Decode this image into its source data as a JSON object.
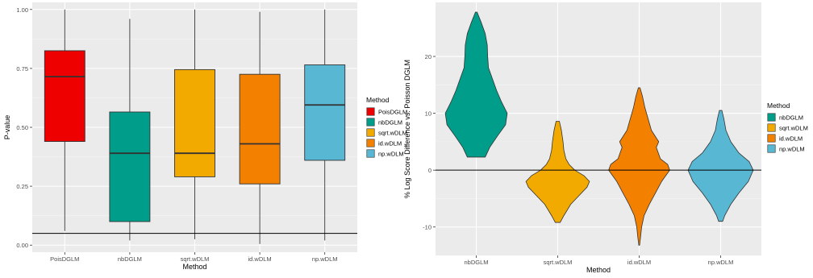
{
  "chart_data": [
    {
      "type": "box",
      "xlabel": "Method",
      "ylabel": "P-value",
      "ylim": [
        -0.03,
        1.03
      ],
      "yticks": [
        "0.00",
        "0.25",
        "0.50",
        "0.75",
        "1.00"
      ],
      "yticks_values": [
        0,
        0.25,
        0.5,
        0.75,
        1.0
      ],
      "hline": 0.05,
      "grid": true,
      "legend_title": "Method",
      "legend_position": "right",
      "categories": [
        "PoisDGLM",
        "nbDGLM",
        "sqrt.wDLM",
        "id.wDLM",
        "np.wDLM"
      ],
      "colors": [
        "#ee0000",
        "#009e8a",
        "#f2aa00",
        "#f48000",
        "#58b7d3"
      ],
      "boxes": [
        {
          "min": 0.06,
          "q1": 0.44,
          "median": 0.715,
          "q3": 0.825,
          "max": 1.0
        },
        {
          "min": 0.02,
          "q1": 0.1,
          "median": 0.39,
          "q3": 0.565,
          "max": 0.96
        },
        {
          "min": 0.025,
          "q1": 0.29,
          "median": 0.39,
          "q3": 0.745,
          "max": 1.0
        },
        {
          "min": 0.005,
          "q1": 0.26,
          "median": 0.43,
          "q3": 0.725,
          "max": 0.99
        },
        {
          "min": 0.02,
          "q1": 0.36,
          "median": 0.595,
          "q3": 0.765,
          "max": 1.0
        }
      ]
    },
    {
      "type": "violin",
      "xlabel": "Method",
      "ylabel": "% Log Score Difference vs. Poisson DGLM",
      "ylim": [
        -15,
        29.5
      ],
      "yticks": [
        "-10",
        "0",
        "10",
        "20"
      ],
      "yticks_values": [
        -10,
        0,
        10,
        20
      ],
      "hline": 0,
      "grid": true,
      "legend_title": "Method",
      "legend_position": "right",
      "categories": [
        "nbDGLM",
        "sqrt.wDLM",
        "id.wDLM",
        "np.wDLM"
      ],
      "colors": [
        "#009e8a",
        "#f2aa00",
        "#f48000",
        "#58b7d3"
      ],
      "violins": [
        {
          "profile": [
            [
              2.3,
              0.22
            ],
            [
              4,
              0.33
            ],
            [
              6,
              0.52
            ],
            [
              8,
              0.72
            ],
            [
              10,
              0.76
            ],
            [
              12,
              0.62
            ],
            [
              14,
              0.5
            ],
            [
              16,
              0.4
            ],
            [
              18,
              0.3
            ],
            [
              20,
              0.28
            ],
            [
              22,
              0.27
            ],
            [
              24,
              0.22
            ],
            [
              26,
              0.12
            ],
            [
              27.8,
              0.02
            ]
          ]
        },
        {
          "profile": [
            [
              -9.2,
              0.06
            ],
            [
              -8,
              0.15
            ],
            [
              -6,
              0.32
            ],
            [
              -4.5,
              0.52
            ],
            [
              -3,
              0.72
            ],
            [
              -2,
              0.78
            ],
            [
              -1,
              0.65
            ],
            [
              0,
              0.42
            ],
            [
              1,
              0.28
            ],
            [
              2,
              0.2
            ],
            [
              3.5,
              0.15
            ],
            [
              5,
              0.13
            ],
            [
              7,
              0.09
            ],
            [
              8.6,
              0.04
            ]
          ]
        },
        {
          "profile": [
            [
              -13.2,
              0.01
            ],
            [
              -12,
              0.03
            ],
            [
              -10,
              0.06
            ],
            [
              -8,
              0.12
            ],
            [
              -6,
              0.25
            ],
            [
              -4,
              0.4
            ],
            [
              -2,
              0.55
            ],
            [
              0,
              0.75
            ],
            [
              1,
              0.7
            ],
            [
              2,
              0.52
            ],
            [
              4,
              0.42
            ],
            [
              5,
              0.48
            ],
            [
              7,
              0.3
            ],
            [
              9,
              0.22
            ],
            [
              11,
              0.14
            ],
            [
              13,
              0.08
            ],
            [
              14.5,
              0.02
            ]
          ]
        },
        {
          "profile": [
            [
              -9.0,
              0.05
            ],
            [
              -8,
              0.1
            ],
            [
              -6,
              0.25
            ],
            [
              -4,
              0.45
            ],
            [
              -2,
              0.68
            ],
            [
              0,
              0.8
            ],
            [
              1.5,
              0.7
            ],
            [
              3,
              0.45
            ],
            [
              5,
              0.25
            ],
            [
              7,
              0.13
            ],
            [
              9,
              0.08
            ],
            [
              10.5,
              0.03
            ]
          ]
        }
      ]
    }
  ]
}
